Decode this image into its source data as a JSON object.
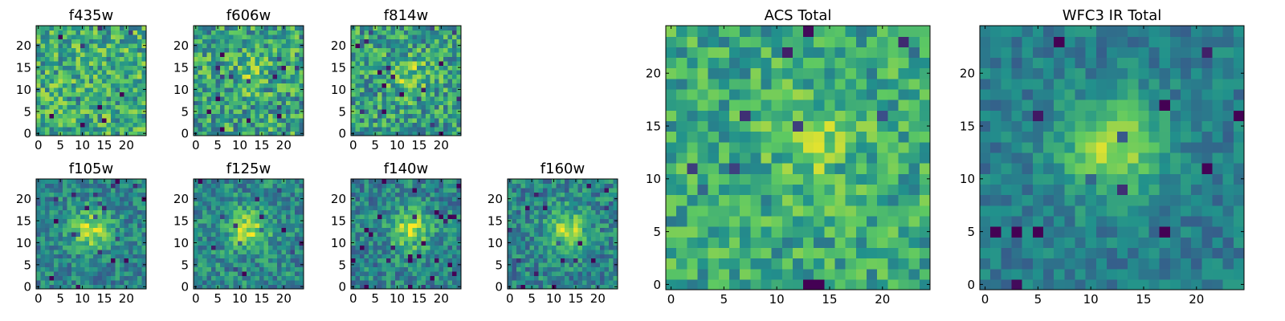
{
  "figure": {
    "colormap": [
      "#440154",
      "#3b528b",
      "#21918c",
      "#5ec962",
      "#fde725"
    ],
    "frame_color": "#000000"
  },
  "chart_data": [
    {
      "type": "heatmap",
      "title": "f435w",
      "grid_size": 25,
      "xlim": [
        0,
        24
      ],
      "ylim": [
        0,
        24
      ],
      "xticks": [
        0,
        5,
        10,
        15,
        20
      ],
      "yticks": [
        0,
        5,
        10,
        15,
        20
      ],
      "peak": [
        12,
        12
      ],
      "peak_amplitude": 0.0,
      "noise": 0.19,
      "base": 0.62,
      "seed": 11
    },
    {
      "type": "heatmap",
      "title": "f606w",
      "grid_size": 25,
      "xlim": [
        0,
        24
      ],
      "ylim": [
        0,
        24
      ],
      "xticks": [
        0,
        5,
        10,
        15,
        20
      ],
      "yticks": [
        0,
        5,
        10,
        15,
        20
      ],
      "peak": [
        12,
        14
      ],
      "peak_amplitude": 0.12,
      "noise": 0.2,
      "base": 0.58,
      "seed": 23
    },
    {
      "type": "heatmap",
      "title": "f814w",
      "grid_size": 25,
      "xlim": [
        0,
        24
      ],
      "ylim": [
        0,
        24
      ],
      "xticks": [
        0,
        5,
        10,
        15,
        20
      ],
      "yticks": [
        0,
        5,
        10,
        15,
        20
      ],
      "peak": [
        13,
        13
      ],
      "peak_amplitude": 0.2,
      "noise": 0.19,
      "base": 0.56,
      "seed": 37
    },
    {
      "type": "heatmap",
      "title": "f105w",
      "grid_size": 25,
      "xlim": [
        0,
        24
      ],
      "ylim": [
        0,
        24
      ],
      "xticks": [
        0,
        5,
        10,
        15,
        20
      ],
      "yticks": [
        0,
        5,
        10,
        15,
        20
      ],
      "peak": [
        12,
        13
      ],
      "peak_amplitude": 0.42,
      "noise": 0.13,
      "base": 0.45,
      "seed": 41
    },
    {
      "type": "heatmap",
      "title": "f125w",
      "grid_size": 25,
      "xlim": [
        0,
        24
      ],
      "ylim": [
        0,
        24
      ],
      "xticks": [
        0,
        5,
        10,
        15,
        20
      ],
      "yticks": [
        0,
        5,
        10,
        15,
        20
      ],
      "peak": [
        12,
        13
      ],
      "peak_amplitude": 0.4,
      "noise": 0.14,
      "base": 0.47,
      "seed": 53
    },
    {
      "type": "heatmap",
      "title": "f140w",
      "grid_size": 25,
      "xlim": [
        0,
        24
      ],
      "ylim": [
        0,
        24
      ],
      "xticks": [
        0,
        5,
        10,
        15,
        20
      ],
      "yticks": [
        0,
        5,
        10,
        15,
        20
      ],
      "peak": [
        13,
        13
      ],
      "peak_amplitude": 0.42,
      "noise": 0.14,
      "base": 0.45,
      "seed": 67
    },
    {
      "type": "heatmap",
      "title": "f160w",
      "grid_size": 25,
      "xlim": [
        0,
        24
      ],
      "ylim": [
        0,
        24
      ],
      "xticks": [
        0,
        5,
        10,
        15,
        20
      ],
      "yticks": [
        0,
        5,
        10,
        15,
        20
      ],
      "peak": [
        13,
        13
      ],
      "peak_amplitude": 0.42,
      "noise": 0.14,
      "base": 0.45,
      "seed": 79
    },
    {
      "type": "heatmap",
      "title": "ACS Total",
      "grid_size": 25,
      "xlim": [
        0,
        24
      ],
      "ylim": [
        0,
        24
      ],
      "xticks": [
        0,
        5,
        10,
        15,
        20
      ],
      "yticks": [
        0,
        5,
        10,
        15,
        20
      ],
      "peak": [
        14,
        13
      ],
      "peak_amplitude": 0.18,
      "noise": 0.15,
      "base": 0.6,
      "seed": 97
    },
    {
      "type": "heatmap",
      "title": "WFC3 IR Total",
      "grid_size": 25,
      "xlim": [
        0,
        24
      ],
      "ylim": [
        0,
        24
      ],
      "xticks": [
        0,
        5,
        10,
        15,
        20
      ],
      "yticks": [
        0,
        5,
        10,
        15,
        20
      ],
      "peak": [
        12,
        13
      ],
      "peak_amplitude": 0.46,
      "noise": 0.09,
      "base": 0.42,
      "seed": 103
    }
  ]
}
